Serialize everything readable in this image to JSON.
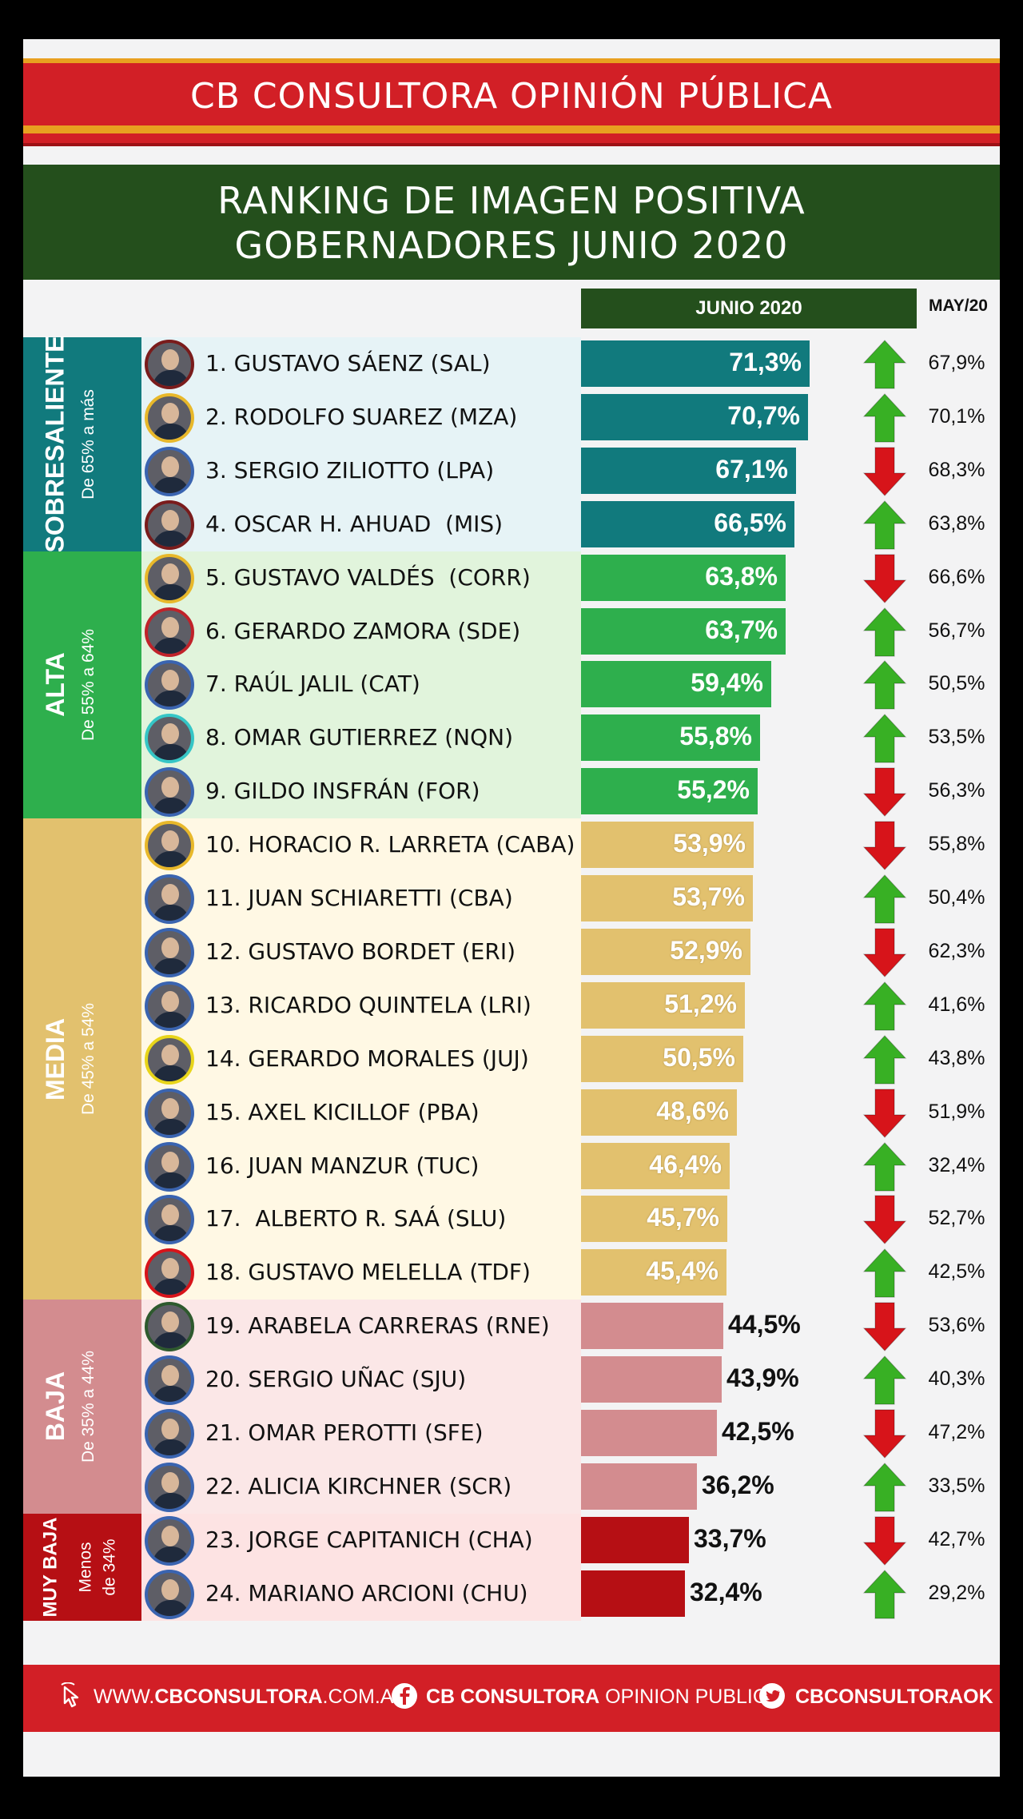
{
  "header": {
    "brand": "CB CONSULTORA OPINIÓN PÚBLICA",
    "title_line_1": "RANKING DE IMAGEN POSITIVA",
    "title_line_2": "GOBERNADORES JUNIO 2020",
    "col_current": "JUNIO 2020",
    "col_previous": "MAY/20"
  },
  "categories": [
    {
      "name": "SOBRESALIENTE",
      "range_line_1": "De 65% a más",
      "range_line_2": "",
      "rows": 4,
      "color": "#117a7d",
      "row_tint": "#e6f3f6"
    },
    {
      "name": "ALTA",
      "range_line_1": "De 55% a 64%",
      "range_line_2": "",
      "rows": 5,
      "color": "#2eaf4d",
      "row_tint": "#e1f4dc"
    },
    {
      "name": "MEDIA",
      "range_line_1": "De 45% a 54%",
      "range_line_2": "",
      "rows": 9,
      "color": "#e2c16e",
      "row_tint": "#fff8e4"
    },
    {
      "name": "BAJA",
      "range_line_1": "De 35% a 44%",
      "range_line_2": "",
      "rows": 4,
      "color": "#d38c8f",
      "row_tint": "#fbe7e7"
    },
    {
      "name": "MUY BAJA",
      "range_line_1": "Menos",
      "range_line_2": "de 34%",
      "rows": 2,
      "color": "#b60f14",
      "row_tint": "#fde3e3"
    }
  ],
  "chart_data": {
    "type": "bar",
    "title": "RANKING DE IMAGEN POSITIVA GOBERNADORES JUNIO 2020",
    "series": [
      {
        "name": "JUNIO 2020",
        "values": [
          71.3,
          70.7,
          67.1,
          66.5,
          63.8,
          63.7,
          59.4,
          55.8,
          55.2,
          53.9,
          53.7,
          52.9,
          51.2,
          50.5,
          48.6,
          46.4,
          45.7,
          45.4,
          44.5,
          43.9,
          42.5,
          36.2,
          33.7,
          32.4
        ]
      },
      {
        "name": "MAY/20",
        "values": [
          67.9,
          70.1,
          68.3,
          63.8,
          66.6,
          56.7,
          50.5,
          53.5,
          56.3,
          55.8,
          50.4,
          62.3,
          41.6,
          43.8,
          51.9,
          32.4,
          52.7,
          42.5,
          53.6,
          40.3,
          47.2,
          33.5,
          42.7,
          29.2
        ]
      }
    ],
    "rows": [
      {
        "name": "1. GUSTAVO SÁENZ (SAL)",
        "value": 71.3,
        "label": "71,3%",
        "trend": "up",
        "prev": "67,9%",
        "category": 0
      },
      {
        "name": "2. RODOLFO SUAREZ (MZA)",
        "value": 70.7,
        "label": "70,7%",
        "trend": "up",
        "prev": "70,1%",
        "category": 0
      },
      {
        "name": "3. SERGIO ZILIOTTO (LPA)",
        "value": 67.1,
        "label": "67,1%",
        "trend": "down",
        "prev": "68,3%",
        "category": 0
      },
      {
        "name": "4. OSCAR H. AHUAD  (MIS)",
        "value": 66.5,
        "label": "66,5%",
        "trend": "up",
        "prev": "63,8%",
        "category": 0
      },
      {
        "name": "5. GUSTAVO VALDÉS  (CORR)",
        "value": 63.8,
        "label": "63,8%",
        "trend": "down",
        "prev": "66,6%",
        "category": 1
      },
      {
        "name": "6. GERARDO ZAMORA (SDE)",
        "value": 63.7,
        "label": "63,7%",
        "trend": "up",
        "prev": "56,7%",
        "category": 1
      },
      {
        "name": "7. RAÚL JALIL (CAT)",
        "value": 59.4,
        "label": "59,4%",
        "trend": "up",
        "prev": "50,5%",
        "category": 1
      },
      {
        "name": "8. OMAR GUTIERREZ (NQN)",
        "value": 55.8,
        "label": "55,8%",
        "trend": "up",
        "prev": "53,5%",
        "category": 1
      },
      {
        "name": "9. GILDO INSFRÁN (FOR)",
        "value": 55.2,
        "label": "55,2%",
        "trend": "down",
        "prev": "56,3%",
        "category": 1
      },
      {
        "name": "10. HORACIO R. LARRETA (CABA)",
        "value": 53.9,
        "label": "53,9%",
        "trend": "down",
        "prev": "55,8%",
        "category": 2
      },
      {
        "name": "11. JUAN SCHIARETTI (CBA)",
        "value": 53.7,
        "label": "53,7%",
        "trend": "up",
        "prev": "50,4%",
        "category": 2
      },
      {
        "name": "12. GUSTAVO BORDET (ERI)",
        "value": 52.9,
        "label": "52,9%",
        "trend": "down",
        "prev": "62,3%",
        "category": 2
      },
      {
        "name": "13. RICARDO QUINTELA (LRI)",
        "value": 51.2,
        "label": "51,2%",
        "trend": "up",
        "prev": "41,6%",
        "category": 2
      },
      {
        "name": "14. GERARDO MORALES (JUJ)",
        "value": 50.5,
        "label": "50,5%",
        "trend": "up",
        "prev": "43,8%",
        "category": 2
      },
      {
        "name": "15. AXEL KICILLOF (PBA)",
        "value": 48.6,
        "label": "48,6%",
        "trend": "down",
        "prev": "51,9%",
        "category": 2
      },
      {
        "name": "16. JUAN MANZUR (TUC)",
        "value": 46.4,
        "label": "46,4%",
        "trend": "up",
        "prev": "32,4%",
        "category": 2
      },
      {
        "name": "17.  ALBERTO R. SAÁ (SLU)",
        "value": 45.7,
        "label": "45,7%",
        "trend": "down",
        "prev": "52,7%",
        "category": 2
      },
      {
        "name": "18. GUSTAVO MELELLA (TDF)",
        "value": 45.4,
        "label": "45,4%",
        "trend": "up",
        "prev": "42,5%",
        "category": 2
      },
      {
        "name": "19. ARABELA CARRERAS (RNE)",
        "value": 44.5,
        "label": "44,5%",
        "trend": "down",
        "prev": "53,6%",
        "category": 3
      },
      {
        "name": "20. SERGIO UÑAC (SJU)",
        "value": 43.9,
        "label": "43,9%",
        "trend": "up",
        "prev": "40,3%",
        "category": 3
      },
      {
        "name": "21. OMAR PEROTTI (SFE)",
        "value": 42.5,
        "label": "42,5%",
        "trend": "down",
        "prev": "47,2%",
        "category": 3
      },
      {
        "name": "22. ALICIA KIRCHNER (SCR)",
        "value": 36.2,
        "label": "36,2%",
        "trend": "up",
        "prev": "33,5%",
        "category": 3
      },
      {
        "name": "23. JORGE CAPITANICH (CHA)",
        "value": 33.7,
        "label": "33,7%",
        "trend": "down",
        "prev": "42,7%",
        "category": 4
      },
      {
        "name": "24. MARIANO ARCIONI (CHU)",
        "value": 32.4,
        "label": "32,4%",
        "trend": "up",
        "prev": "29,2%",
        "category": 4
      }
    ]
  },
  "footer": {
    "web_prefix": "WWW.",
    "web_main": "CBCONSULTORA",
    "web_suffix": ".COM.AR",
    "facebook_main": "CB CONSULTORA",
    "facebook_suffix": " OPINION PUBLICA",
    "twitter": "CBCONSULTORAOK",
    "icons": [
      "cursor-icon",
      "facebook-icon",
      "twitter-icon"
    ]
  },
  "colors": {
    "brand_red": "#d21f26",
    "header_green": "#244f1c",
    "arrow_up": "#38b024",
    "arrow_down": "#d7141a",
    "photo_borders": [
      "#7a1c1c",
      "#e8b82a",
      "#3a64b0",
      "#7a1c1c",
      "#e8b82a",
      "#c0232a",
      "#3a64b0",
      "#35c6c6",
      "#3a64b0",
      "#e8b82a",
      "#3a64b0",
      "#3a64b0",
      "#3a64b0",
      "#e8d51a",
      "#3a64b0",
      "#3a64b0",
      "#3a64b0",
      "#d7141a",
      "#2e5a2e",
      "#3a64b0",
      "#3a64b0",
      "#3a64b0",
      "#3a64b0",
      "#3a64b0"
    ]
  }
}
